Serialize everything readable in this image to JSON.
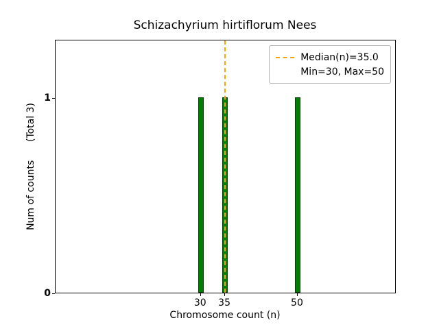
{
  "chart_data": {
    "type": "bar",
    "title": "Schizachyrium hirtiflorum Nees",
    "xlabel": "Chromosome count (n)",
    "ylabel": "Num of counts      (Total 3)",
    "x": [
      30,
      35,
      50
    ],
    "values": [
      1,
      1,
      1
    ],
    "total_counts": 3,
    "median": 35.0,
    "min": 30,
    "max": 50,
    "xlim": [
      0,
      70.4
    ],
    "ylim": [
      0,
      1.3
    ],
    "xticks": [
      "30",
      "35",
      "50"
    ],
    "xtick_values": [
      30,
      35,
      50
    ],
    "yticks": [
      "0",
      "1"
    ],
    "ytick_values": [
      0,
      1
    ],
    "bar_width_units": 1.1,
    "grid": false,
    "legend": {
      "position": "upper right",
      "entries": [
        "Median(n)=35.0",
        "Min=30, Max=50"
      ]
    },
    "colors": {
      "bar_fill": "#008000",
      "bar_edge": "#0b3d0b",
      "median_line": "#FFA500",
      "axis": "#000000"
    }
  }
}
